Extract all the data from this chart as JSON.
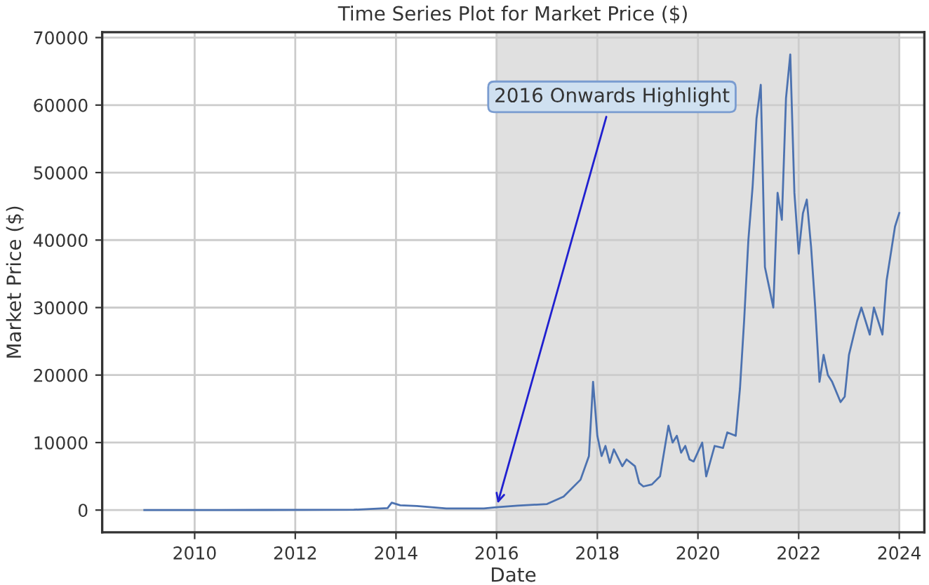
{
  "chart_data": {
    "type": "line",
    "title": "Time Series Plot for Market Price ($)",
    "xlabel": "Date",
    "ylabel": "Market Price ($)",
    "x": [
      "2009-01",
      "2010-07",
      "2011-06",
      "2013-03",
      "2013-11",
      "2013-12",
      "2014-02",
      "2014-06",
      "2015-01",
      "2015-10",
      "2016-01",
      "2016-06",
      "2017-01",
      "2017-05",
      "2017-09",
      "2017-11",
      "2017-12",
      "2018-01",
      "2018-02",
      "2018-03",
      "2018-04",
      "2018-05",
      "2018-07",
      "2018-08",
      "2018-10",
      "2018-11",
      "2018-12",
      "2019-02",
      "2019-04",
      "2019-06",
      "2019-07",
      "2019-08",
      "2019-09",
      "2019-10",
      "2019-11",
      "2019-12",
      "2020-02",
      "2020-03",
      "2020-05",
      "2020-07",
      "2020-08",
      "2020-10",
      "2020-11",
      "2020-12",
      "2021-01",
      "2021-02",
      "2021-03",
      "2021-04",
      "2021-05",
      "2021-06",
      "2021-07",
      "2021-08",
      "2021-09",
      "2021-10",
      "2021-11",
      "2021-12",
      "2022-01",
      "2022-02",
      "2022-03",
      "2022-04",
      "2022-05",
      "2022-06",
      "2022-07",
      "2022-08",
      "2022-09",
      "2022-11",
      "2022-12",
      "2023-01",
      "2023-03",
      "2023-04",
      "2023-06",
      "2023-07",
      "2023-09",
      "2023-10",
      "2023-12",
      "2024-01"
    ],
    "series": [
      {
        "color": "#4c72b0",
        "values": [
          0,
          0,
          20,
          50,
          300,
          1100,
          700,
          600,
          250,
          250,
          430,
          650,
          900,
          2000,
          4500,
          8000,
          19000,
          11000,
          8000,
          9500,
          7000,
          9000,
          6500,
          7500,
          6500,
          4000,
          3500,
          3800,
          5000,
          12500,
          10000,
          11000,
          8500,
          9500,
          7500,
          7200,
          10000,
          5000,
          9500,
          9200,
          11500,
          11000,
          18000,
          28000,
          40000,
          48000,
          58000,
          63000,
          36000,
          33000,
          30000,
          47000,
          43000,
          61000,
          67500,
          47000,
          38000,
          44000,
          46000,
          39000,
          30000,
          19000,
          23000,
          20000,
          19000,
          16000,
          16800,
          23000,
          28000,
          30000,
          26000,
          30000,
          26000,
          34000,
          42000,
          44000
        ]
      }
    ],
    "xlim": [
      "2008-03",
      "2024-07"
    ],
    "xticks": [
      {
        "value": "2010",
        "label": "2010"
      },
      {
        "value": "2012",
        "label": "2012"
      },
      {
        "value": "2014",
        "label": "2014"
      },
      {
        "value": "2016",
        "label": "2016"
      },
      {
        "value": "2018",
        "label": "2018"
      },
      {
        "value": "2020",
        "label": "2020"
      },
      {
        "value": "2022",
        "label": "2022"
      },
      {
        "value": "2024",
        "label": "2024"
      }
    ],
    "ylim": [
      -3300,
      70800
    ],
    "yticks": [
      0,
      10000,
      20000,
      30000,
      40000,
      50000,
      60000,
      70000
    ],
    "bands": [
      {
        "axis": "x",
        "from": "2016-01-01",
        "to": "2024-01-01",
        "color": "#e0e0e0"
      }
    ],
    "annotations": [
      {
        "text": "2016 Onwards Highlight",
        "x": "2016-01-01",
        "y": 430
      }
    ],
    "grid": true,
    "legend": false,
    "line_style": "solid"
  }
}
